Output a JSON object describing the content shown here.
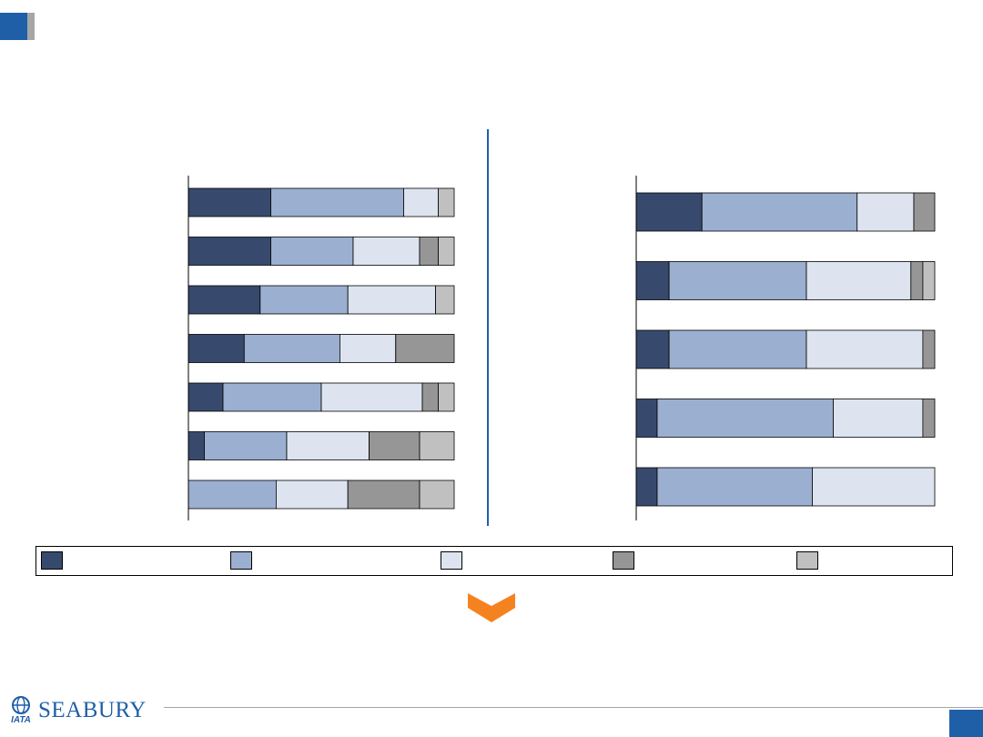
{
  "logo": {
    "text": "SEABURY",
    "mark_text": "IATA"
  },
  "colors": {
    "s1": "#374a6d",
    "s2": "#9bafd0",
    "s3": "#dde4f0",
    "s4": "#969696",
    "s5": "#c0c0c0",
    "accent": "#1f5fa8",
    "chevron": "#f58220"
  },
  "legend": [
    {
      "label": "",
      "color": "#374a6d"
    },
    {
      "label": "",
      "color": "#9bafd0"
    },
    {
      "label": "",
      "color": "#dde4f0"
    },
    {
      "label": "",
      "color": "#969696"
    },
    {
      "label": "",
      "color": "#c0c0c0"
    }
  ],
  "chart_data": [
    {
      "type": "bar",
      "orientation": "horizontal",
      "stacked": true,
      "normalized": true,
      "xlim": [
        0,
        100
      ],
      "categories": [
        "",
        "",
        "",
        "",
        "",
        "",
        ""
      ],
      "series": [
        {
          "values": [
            31,
            31,
            27,
            21,
            13,
            6,
            0
          ]
        },
        {
          "values": [
            50,
            31,
            33,
            36,
            37,
            31,
            33
          ]
        },
        {
          "values": [
            13,
            25,
            33,
            21,
            38,
            31,
            27
          ]
        },
        {
          "values": [
            0,
            7,
            0,
            22,
            6,
            19,
            27
          ]
        },
        {
          "values": [
            6,
            6,
            7,
            0,
            6,
            13,
            13
          ]
        }
      ]
    },
    {
      "type": "bar",
      "orientation": "horizontal",
      "stacked": true,
      "normalized": true,
      "xlim": [
        0,
        100
      ],
      "categories": [
        "",
        "",
        "",
        "",
        ""
      ],
      "series": [
        {
          "values": [
            22,
            11,
            11,
            7,
            7
          ]
        },
        {
          "values": [
            52,
            46,
            46,
            59,
            52
          ]
        },
        {
          "values": [
            19,
            35,
            39,
            30,
            41
          ]
        },
        {
          "values": [
            7,
            4,
            4,
            4,
            0
          ]
        },
        {
          "values": [
            0,
            4,
            0,
            0,
            0
          ]
        }
      ]
    }
  ]
}
